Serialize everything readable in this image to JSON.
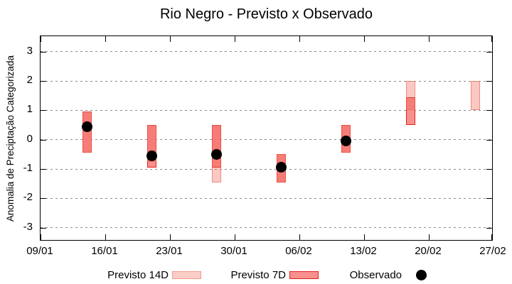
{
  "chart_data": {
    "type": "bar",
    "subtype": "forecast-interval-bars-with-observed-dots",
    "title": "Rio Negro - Previsto x Observado",
    "xlabel": "",
    "ylabel": "Anomalia de Preciptação Categorizada",
    "ylim": [
      -3.5,
      3.5
    ],
    "y_ticks": [
      3,
      2,
      1,
      0,
      -1,
      -2,
      -3
    ],
    "y_tick_labels": [
      "3",
      "2",
      "1",
      "0",
      "-1",
      "-2",
      "-3"
    ],
    "x_ticks": [
      {
        "label": "09/01",
        "day": 0
      },
      {
        "label": "16/01",
        "day": 7
      },
      {
        "label": "23/01",
        "day": 14
      },
      {
        "label": "30/01",
        "day": 21
      },
      {
        "label": "06/02",
        "day": 28
      },
      {
        "label": "13/02",
        "day": 35
      },
      {
        "label": "20/02",
        "day": 42
      },
      {
        "label": "27/02",
        "day": 49
      }
    ],
    "grid": "horizontal-dashed",
    "series_names": [
      "Previsto 14D",
      "Previsto 7D",
      "Observado"
    ],
    "points": [
      {
        "date": "14/01",
        "day": 5,
        "previsto14": [
          -0.45,
          0.95
        ],
        "previsto7": [
          -0.45,
          0.95
        ],
        "observado": 0.45
      },
      {
        "date": "21/01",
        "day": 12,
        "previsto14": [
          -0.75,
          0.5
        ],
        "previsto7": [
          -0.95,
          0.5
        ],
        "observado": -0.55
      },
      {
        "date": "28/01",
        "day": 19,
        "previsto14": [
          -1.45,
          0.5
        ],
        "previsto7": [
          -0.95,
          0.5
        ],
        "observado": -0.5
      },
      {
        "date": "04/02",
        "day": 26,
        "previsto14": [
          -1.45,
          -0.5
        ],
        "previsto7": [
          -1.45,
          -0.5
        ],
        "observado": -0.95
      },
      {
        "date": "11/02",
        "day": 33,
        "previsto14": [
          -0.45,
          0.5
        ],
        "previsto7": [
          -0.45,
          0.5
        ],
        "observado": -0.05
      },
      {
        "date": "18/02",
        "day": 40,
        "previsto14": [
          1.0,
          2.0
        ],
        "previsto7": [
          0.5,
          1.45
        ],
        "observado": null
      },
      {
        "date": "25/02",
        "day": 47,
        "previsto14": [
          1.0,
          2.0
        ],
        "previsto7": null,
        "observado": null
      }
    ],
    "legend": {
      "position": "bottom",
      "items": [
        {
          "label": "Previsto 14D",
          "swatch": "range-14d"
        },
        {
          "label": "Previsto 7D",
          "swatch": "range-7d"
        },
        {
          "label": "Observado",
          "swatch": "dot"
        }
      ]
    }
  },
  "colors": {
    "previsto14_fill": "#fbcdc7",
    "previsto14_border": "#f2998f",
    "previsto14_fill_rgba": "rgba(242,88,73,0.33)",
    "previsto14_border_rgba": "rgba(236,100,85,0.6)",
    "previsto7_fill": "#f8908e",
    "previsto7_border": "#e3211d",
    "observado": "#000000",
    "grid": "#8a8a8a",
    "axis": "#000000",
    "background": "#ffffff"
  }
}
